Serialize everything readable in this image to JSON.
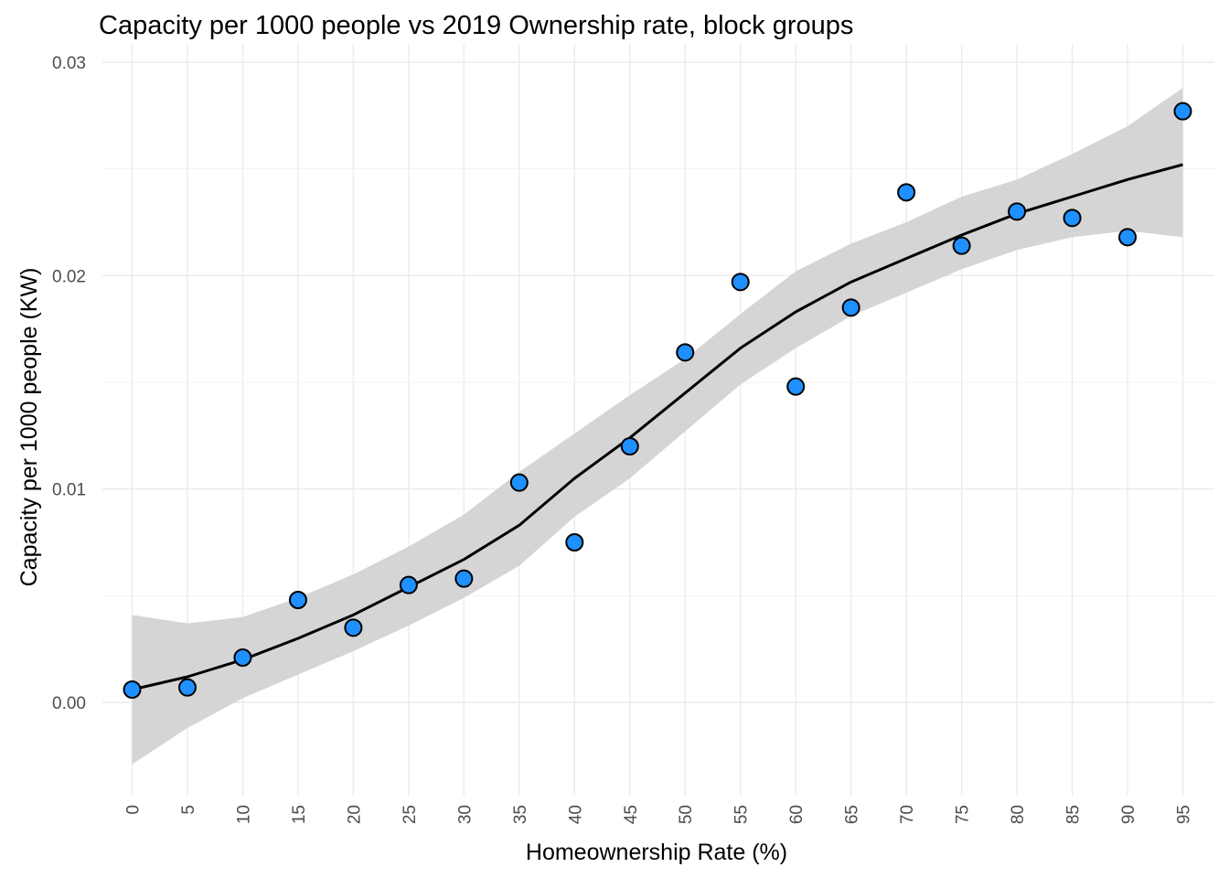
{
  "chart_data": {
    "type": "scatter",
    "title": "Capacity per 1000 people vs 2019 Ownership rate, block groups",
    "xlabel": "Homeownership Rate (%)",
    "ylabel": "Capacity per 1000 people (KW)",
    "xlim": [
      0,
      95
    ],
    "ylim": [
      -0.0043,
      0.03
    ],
    "x_ticks": [
      "0",
      "5",
      "10",
      "15",
      "20",
      "25",
      "30",
      "35",
      "40",
      "45",
      "50",
      "55",
      "60",
      "65",
      "70",
      "75",
      "80",
      "85",
      "90",
      "95"
    ],
    "y_ticks": [
      "0.00",
      "0.01",
      "0.02",
      "0.03"
    ],
    "y_tick_values": [
      0.0,
      0.01,
      0.02,
      0.03
    ],
    "grid": true,
    "point_color": "#1e90ff",
    "point_stroke": "#000000",
    "smooth_color": "#000000",
    "ci_color": "#d3d3d3",
    "series": [
      {
        "x": [
          0,
          5,
          10,
          15,
          20,
          25,
          30,
          35,
          40,
          45,
          50,
          55,
          60,
          65,
          70,
          75,
          80,
          85,
          90,
          95
        ],
        "y": [
          0.0006,
          0.0007,
          0.0021,
          0.0048,
          0.0035,
          0.0055,
          0.0058,
          0.0103,
          0.0075,
          0.012,
          0.0164,
          0.0197,
          0.0148,
          0.0185,
          0.0239,
          0.0214,
          0.023,
          0.0227,
          0.0218,
          0.0277
        ]
      }
    ],
    "smooth": {
      "x": [
        0,
        5,
        10,
        15,
        20,
        25,
        30,
        35,
        40,
        45,
        50,
        55,
        60,
        65,
        70,
        75,
        80,
        85,
        90,
        95
      ],
      "y": [
        0.0006,
        0.0012,
        0.002,
        0.003,
        0.0041,
        0.0054,
        0.0067,
        0.0083,
        0.0105,
        0.0124,
        0.0145,
        0.0166,
        0.0183,
        0.0197,
        0.0208,
        0.0219,
        0.0229,
        0.0237,
        0.0245,
        0.0252
      ],
      "lower": [
        -0.0029,
        -0.0012,
        0.0002,
        0.0013,
        0.0024,
        0.0036,
        0.0049,
        0.0064,
        0.0087,
        0.0105,
        0.0127,
        0.0149,
        0.0166,
        0.0181,
        0.0192,
        0.0203,
        0.0212,
        0.0218,
        0.0221,
        0.0218
      ],
      "upper": [
        0.0041,
        0.0037,
        0.004,
        0.0049,
        0.006,
        0.0073,
        0.0088,
        0.0108,
        0.0126,
        0.0144,
        0.0161,
        0.0182,
        0.0202,
        0.0215,
        0.0225,
        0.0237,
        0.0245,
        0.0257,
        0.027,
        0.0288
      ]
    }
  }
}
